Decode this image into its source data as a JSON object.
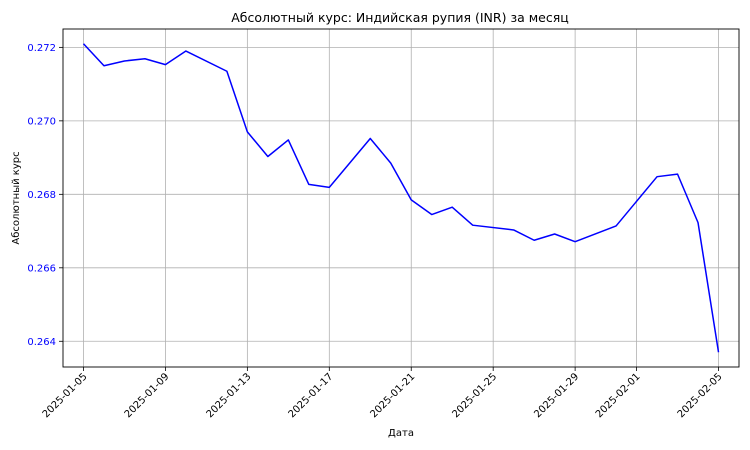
{
  "chart_data": {
    "type": "line",
    "title": "Абсолютный курс: Индийская рупия (INR) за месяц",
    "xlabel": "Дата",
    "ylabel": "Абсолютный курс",
    "ylim": [
      0.2633,
      0.2725
    ],
    "xlim": [
      "2025-01-04",
      "2025-02-06"
    ],
    "grid": true,
    "colors": {
      "line": "#0000ff",
      "ylabel": "#0000ff",
      "yticks": "#0000ff"
    },
    "x_ticks": [
      "2025-01-05",
      "2025-01-09",
      "2025-01-13",
      "2025-01-17",
      "2025-01-21",
      "2025-01-25",
      "2025-01-29",
      "2025-02-01",
      "2025-02-05"
    ],
    "y_ticks": [
      0.264,
      0.266,
      0.268,
      0.27,
      0.272
    ],
    "y_tick_labels": [
      "0.264",
      "0.266",
      "0.268",
      "0.270",
      "0.272"
    ],
    "series": [
      {
        "x": [
          "2025-01-05",
          "2025-01-06",
          "2025-01-07",
          "2025-01-08",
          "2025-01-09",
          "2025-01-10",
          "2025-01-12",
          "2025-01-13",
          "2025-01-14",
          "2025-01-15",
          "2025-01-16",
          "2025-01-17",
          "2025-01-19",
          "2025-01-20",
          "2025-01-21",
          "2025-01-22",
          "2025-01-23",
          "2025-01-24",
          "2025-01-26",
          "2025-01-27",
          "2025-01-28",
          "2025-01-29",
          "2025-01-31",
          "2025-02-02",
          "2025-02-03",
          "2025-02-04",
          "2025-02-05"
        ],
        "y": [
          0.2721,
          0.2715,
          0.27163,
          0.27169,
          0.27153,
          0.2719,
          0.27135,
          0.2697,
          0.26903,
          0.26948,
          0.26827,
          0.26819,
          0.26952,
          0.26885,
          0.26785,
          0.26745,
          0.26765,
          0.26716,
          0.26703,
          0.26675,
          0.26692,
          0.26671,
          0.26714,
          0.26848,
          0.26855,
          0.26723,
          0.2637
        ]
      }
    ]
  }
}
